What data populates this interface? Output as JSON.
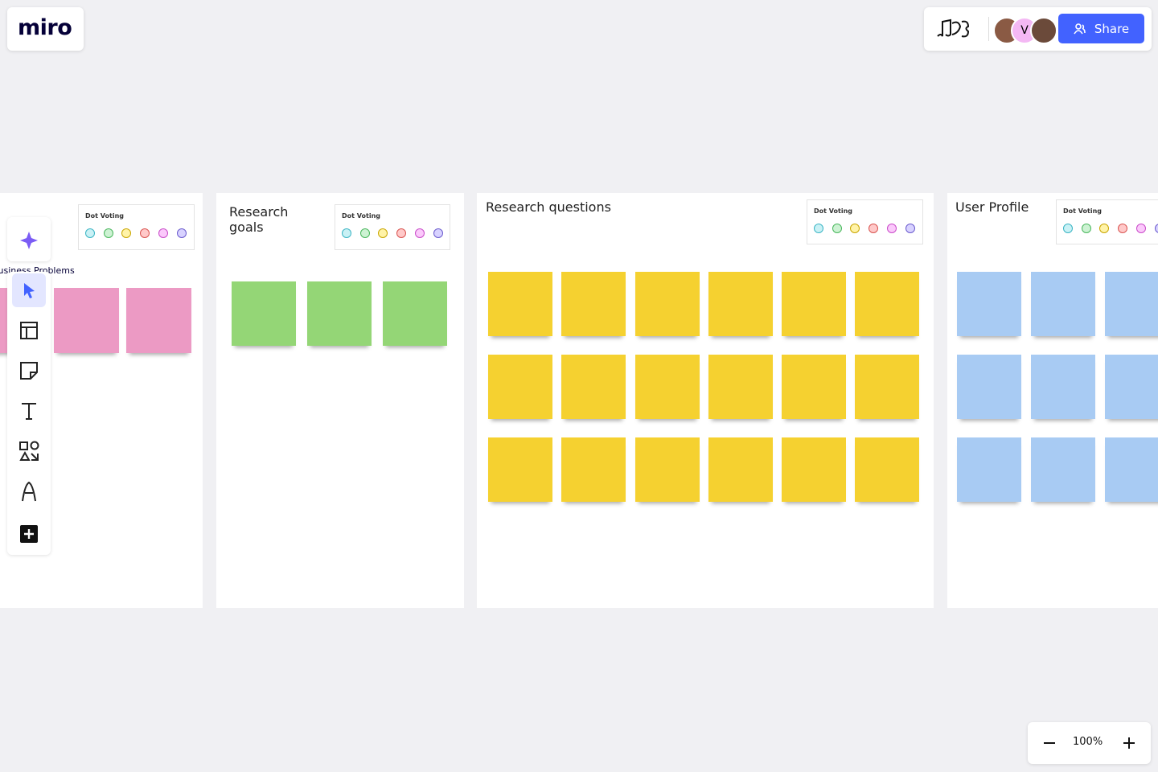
{
  "header": {
    "logo": "miro",
    "avatar_initial": "V",
    "share": "Share"
  },
  "frames": [
    {
      "title": "Business Problems",
      "voting": "Dot Voting"
    },
    {
      "title": "Research goals",
      "voting": "Dot Voting"
    },
    {
      "title": "Research questions",
      "voting": "Dot Voting"
    },
    {
      "title": "User Profile",
      "voting": "Dot Voting"
    }
  ],
  "zoom": {
    "level": "100%"
  }
}
